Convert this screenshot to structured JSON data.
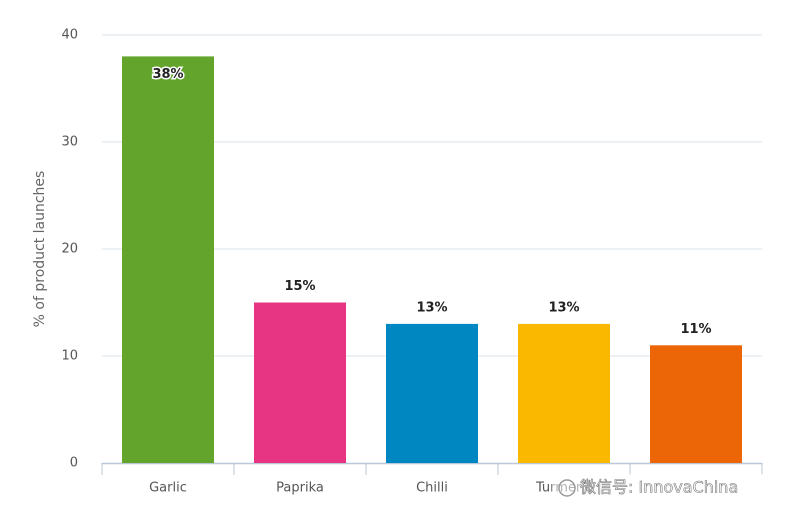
{
  "chart_data": {
    "type": "bar",
    "y_label": "% of product launches",
    "categories": [
      "Garlic",
      "Paprika",
      "Chilli",
      "Turmeric",
      null
    ],
    "values": [
      38,
      15,
      13,
      13,
      11
    ],
    "value_labels": [
      "38%",
      "15%",
      "13%",
      "13%",
      "11%"
    ],
    "colors": [
      "#63a52c",
      "#e83583",
      "#0087c1",
      "#fbb800",
      "#ec6608"
    ],
    "ylim": [
      0,
      40
    ],
    "yticks": [
      0,
      10,
      20,
      30,
      40
    ],
    "grid": true
  },
  "watermark": "微信号: InnovaChina"
}
